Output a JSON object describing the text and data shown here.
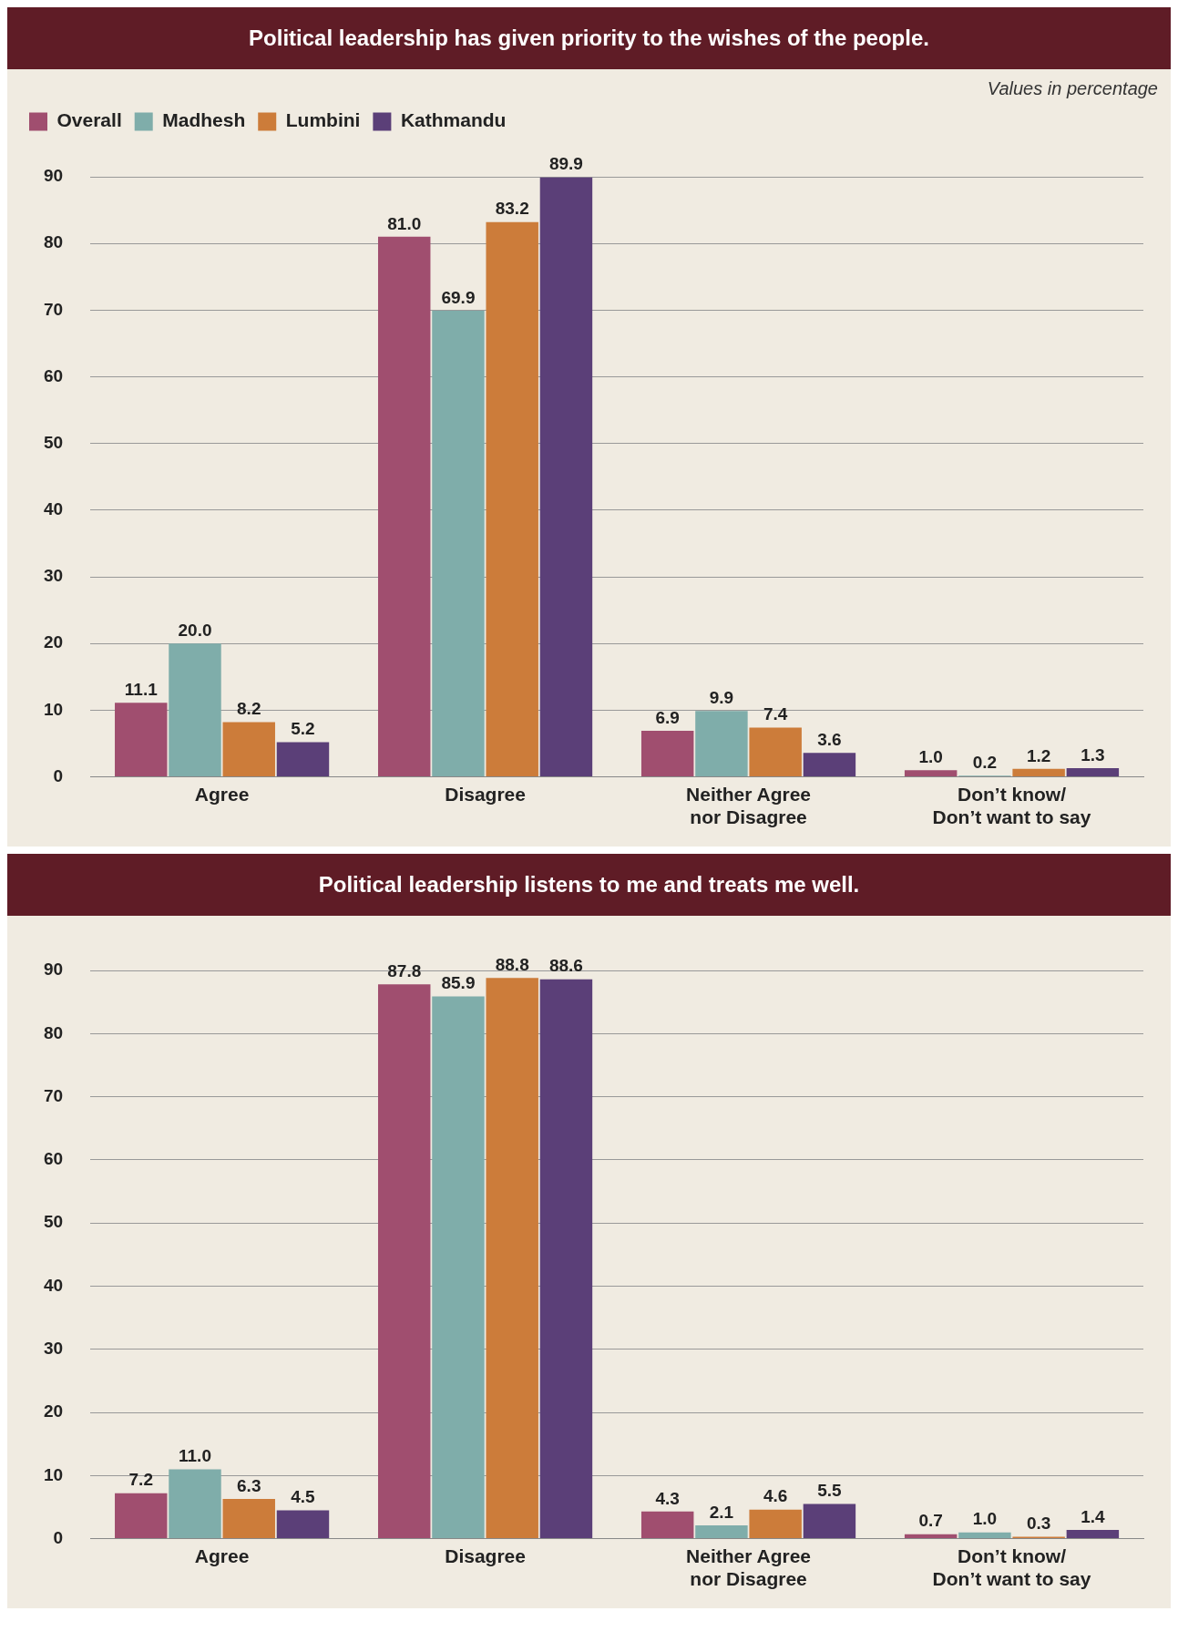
{
  "chart_data": [
    {
      "type": "bar",
      "title": "Political leadership has given priority to the wishes of the people.",
      "annotations": [
        "Values in percentage"
      ],
      "categories": [
        "Agree",
        "Disagree",
        "Neither Agree\nnor Disagree",
        "Don’t know/\nDon’t want to say"
      ],
      "series": [
        {
          "name": "Overall",
          "color": "#a04e6f",
          "values": [
            11.1,
            81.0,
            6.9,
            1.0
          ],
          "value_labels": [
            "11.1",
            "81.0",
            "6.9",
            "1.0"
          ]
        },
        {
          "name": "Madhesh",
          "color": "#7fadaa",
          "values": [
            20.0,
            69.9,
            9.9,
            0.2
          ],
          "value_labels": [
            "20.0",
            "69.9",
            "9.9",
            "0.2"
          ]
        },
        {
          "name": "Lumbini",
          "color": "#cc7c3a",
          "values": [
            8.2,
            83.2,
            7.4,
            1.2
          ],
          "value_labels": [
            "8.2",
            "83.2",
            "7.4",
            "1.2"
          ]
        },
        {
          "name": "Kathmandu",
          "color": "#5b3f78",
          "values": [
            5.2,
            89.9,
            3.6,
            1.3
          ],
          "value_labels": [
            "5.2",
            "89.9",
            "3.6",
            "1.3"
          ]
        }
      ],
      "ylim": [
        0,
        90
      ],
      "yticks": [
        0,
        10,
        20,
        30,
        40,
        50,
        60,
        70,
        80,
        90
      ],
      "grid": "y",
      "legend": "top left"
    },
    {
      "type": "bar",
      "title": "Political leadership listens to me and treats me well.",
      "categories": [
        "Agree",
        "Disagree",
        "Neither Agree\nnor Disagree",
        "Don’t know/\nDon’t want to say"
      ],
      "series": [
        {
          "color": "#a04e6f",
          "values": [
            7.2,
            87.8,
            4.3,
            0.7
          ],
          "value_labels": [
            "7.2",
            "87.8",
            "4.3",
            "0.7"
          ]
        },
        {
          "color": "#7fadaa",
          "values": [
            11.0,
            85.9,
            2.1,
            1.0
          ],
          "value_labels": [
            "11.0",
            "85.9",
            "2.1",
            "1.0"
          ]
        },
        {
          "color": "#cc7c3a",
          "values": [
            6.3,
            88.8,
            4.6,
            0.3
          ],
          "value_labels": [
            "6.3",
            "88.8",
            "4.6",
            "0.3"
          ]
        },
        {
          "color": "#5b3f78",
          "values": [
            4.5,
            88.6,
            5.5,
            1.4
          ],
          "value_labels": [
            "4.5",
            "88.6",
            "5.5",
            "1.4"
          ]
        }
      ],
      "ylim": [
        0,
        90
      ],
      "yticks": [
        0,
        10,
        20,
        30,
        40,
        50,
        60,
        70,
        80,
        90
      ],
      "grid": "y"
    }
  ]
}
